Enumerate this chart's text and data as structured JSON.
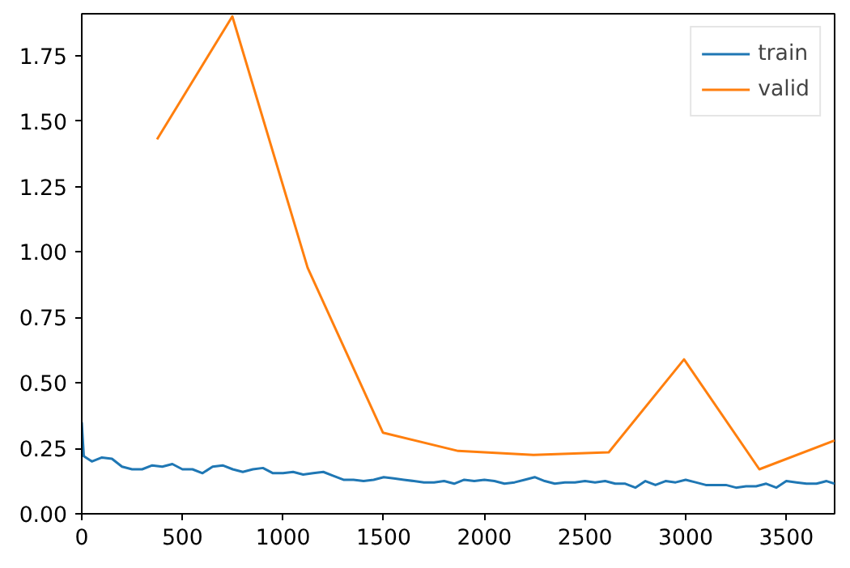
{
  "chart_data": {
    "type": "line",
    "x": [
      0,
      10,
      50,
      100,
      150,
      200,
      250,
      300,
      350,
      400,
      450,
      500,
      550,
      600,
      650,
      700,
      750,
      800,
      850,
      900,
      950,
      1000,
      1050,
      1100,
      1150,
      1200,
      1250,
      1300,
      1350,
      1400,
      1450,
      1500,
      1550,
      1600,
      1650,
      1700,
      1750,
      1800,
      1850,
      1900,
      1950,
      2000,
      2050,
      2100,
      2150,
      2200,
      2250,
      2300,
      2350,
      2400,
      2450,
      2500,
      2550,
      2600,
      2650,
      2700,
      2750,
      2800,
      2850,
      2900,
      2950,
      3000,
      3050,
      3100,
      3150,
      3200,
      3250,
      3300,
      3350,
      3400,
      3450,
      3500,
      3550,
      3600,
      3650,
      3700,
      3740
    ],
    "series": [
      {
        "name": "train",
        "color": "#1f77b4",
        "values": [
          0.35,
          0.22,
          0.2,
          0.215,
          0.21,
          0.18,
          0.17,
          0.17,
          0.185,
          0.18,
          0.19,
          0.17,
          0.17,
          0.155,
          0.18,
          0.185,
          0.17,
          0.16,
          0.17,
          0.175,
          0.155,
          0.155,
          0.16,
          0.15,
          0.155,
          0.16,
          0.145,
          0.13,
          0.13,
          0.125,
          0.13,
          0.14,
          0.135,
          0.13,
          0.125,
          0.12,
          0.12,
          0.125,
          0.115,
          0.13,
          0.125,
          0.13,
          0.125,
          0.115,
          0.12,
          0.13,
          0.14,
          0.125,
          0.115,
          0.12,
          0.12,
          0.125,
          0.12,
          0.125,
          0.115,
          0.115,
          0.1,
          0.125,
          0.11,
          0.125,
          0.12,
          0.13,
          0.12,
          0.11,
          0.11,
          0.11,
          0.1,
          0.105,
          0.105,
          0.115,
          0.1,
          0.125,
          0.12,
          0.115,
          0.115,
          0.125,
          0.115
        ]
      },
      {
        "name": "valid",
        "color": "#ff7f0e",
        "x": [
          374,
          748,
          1122,
          1496,
          1870,
          2244,
          2618,
          2992,
          3366,
          3740
        ],
        "values": [
          1.43,
          1.9,
          0.94,
          0.31,
          0.24,
          0.225,
          0.235,
          0.59,
          0.17,
          0.28
        ]
      }
    ],
    "xlim": [
      0,
      3740
    ],
    "ylim": [
      0,
      1.91
    ],
    "xticks": [
      0,
      500,
      1000,
      1500,
      2000,
      2500,
      3000,
      3500
    ],
    "yticks": [
      {
        "value": 0,
        "label": "0.00"
      },
      {
        "value": 0.25,
        "label": "0.25"
      },
      {
        "value": 0.5,
        "label": "0.50"
      },
      {
        "value": 0.75,
        "label": "0.75"
      },
      {
        "value": 1,
        "label": "1.00"
      },
      {
        "value": 1.25,
        "label": "1.25"
      },
      {
        "value": 1.5,
        "label": "1.50"
      },
      {
        "value": 1.75,
        "label": "1.75"
      }
    ],
    "grid": false,
    "legend": "top right"
  }
}
